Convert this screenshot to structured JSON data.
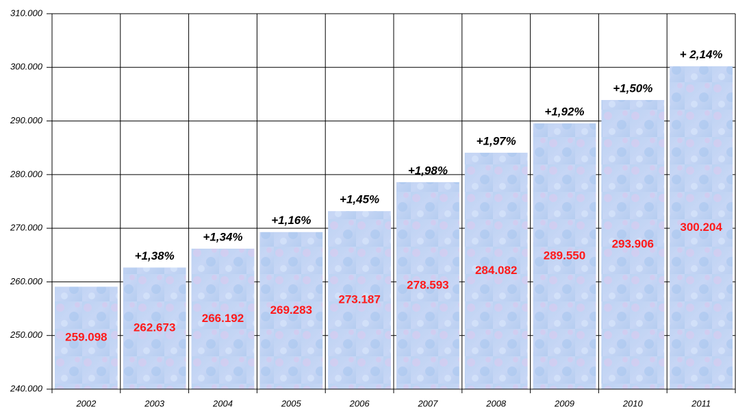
{
  "chart_data": {
    "type": "bar",
    "categories": [
      "2002",
      "2003",
      "2004",
      "2005",
      "2006",
      "2007",
      "2008",
      "2009",
      "2010",
      "2011"
    ],
    "values": [
      259098,
      262673,
      266192,
      269283,
      273187,
      278593,
      284082,
      289550,
      293906,
      300204
    ],
    "value_labels": [
      "259.098",
      "262.673",
      "266.192",
      "269.283",
      "273.187",
      "278.593",
      "284.082",
      "289.550",
      "293.906",
      "300.204"
    ],
    "annotations": [
      null,
      "+1,38%",
      "+1,34%",
      "+1,16%",
      "+1,45%",
      "+1,98%",
      "+1,97%",
      "+1,92%",
      "+1,50%",
      "+ 2,14%"
    ],
    "ylim": [
      240000,
      310000
    ],
    "yticks": [
      {
        "value": 240000,
        "label": "240.000"
      },
      {
        "value": 250000,
        "label": "250.000"
      },
      {
        "value": 260000,
        "label": "260.000"
      },
      {
        "value": 270000,
        "label": "270.000"
      },
      {
        "value": 280000,
        "label": "280.000"
      },
      {
        "value": 290000,
        "label": "290.000"
      },
      {
        "value": 300000,
        "label": "300.000"
      },
      {
        "value": 310000,
        "label": "310.000"
      }
    ],
    "grid": true
  }
}
